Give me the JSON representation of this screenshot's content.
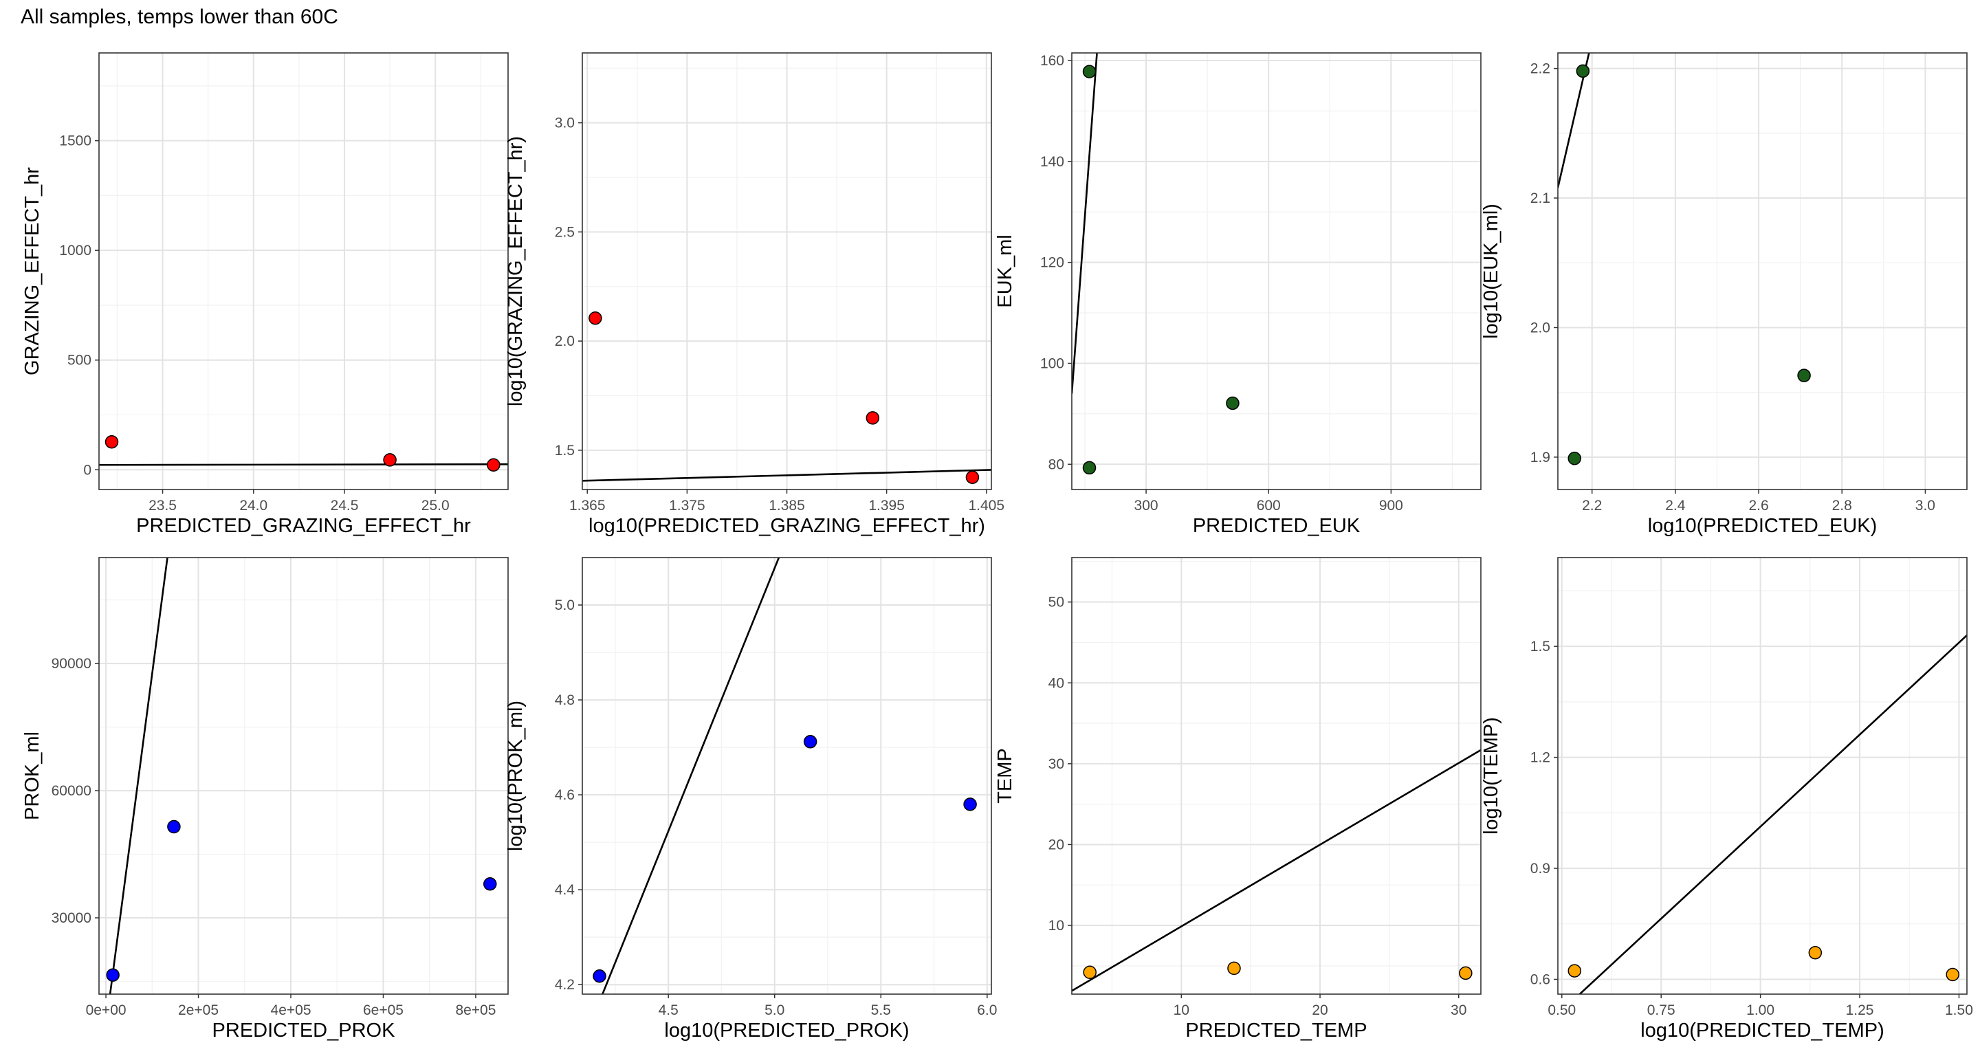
{
  "title": "All samples, temps lower than 60C",
  "chart_data": [
    {
      "type": "scatter",
      "xlabel": "PREDICTED_GRAZING_EFFECT_hr",
      "ylabel": "GRAZING_EFFECT_hr",
      "xlim": [
        23.15,
        25.4
      ],
      "ylim": [
        -90,
        1900
      ],
      "xticks": [
        23.5,
        24.0,
        24.5,
        25.0
      ],
      "xtick_labels": [
        "23.5",
        "24.0",
        "24.5",
        "25.0"
      ],
      "yticks": [
        0,
        500,
        1000,
        1500
      ],
      "ytick_labels": [
        "0",
        "500",
        "1000",
        "1500"
      ],
      "x": [
        23.22,
        24.75,
        25.32
      ],
      "y": [
        127,
        45,
        22
      ],
      "point_color": "#ff0000",
      "line": [
        [
          23.15,
          22
        ],
        [
          25.4,
          25
        ]
      ]
    },
    {
      "type": "scatter",
      "xlabel": "log10(PREDICTED_GRAZING_EFFECT_hr)",
      "ylabel": "log10(GRAZING_EFFECT_hr)",
      "xlim": [
        1.3645,
        1.4055
      ],
      "ylim": [
        1.32,
        3.32
      ],
      "xticks": [
        1.365,
        1.375,
        1.385,
        1.395,
        1.405
      ],
      "xtick_labels": [
        "1.365",
        "1.375",
        "1.385",
        "1.395",
        "1.405"
      ],
      "yticks": [
        1.5,
        2.0,
        2.5,
        3.0
      ],
      "ytick_labels": [
        "1.5",
        "2.0",
        "2.5",
        "3.0"
      ],
      "x": [
        1.3658,
        1.3936,
        1.4036
      ],
      "y": [
        2.105,
        1.648,
        1.376
      ],
      "point_color": "#ff0000",
      "line": [
        [
          1.3645,
          1.36
        ],
        [
          1.4055,
          1.41
        ]
      ]
    },
    {
      "type": "scatter",
      "xlabel": "PREDICTED_EUK",
      "ylabel": "EUK_ml",
      "xlim": [
        118,
        1120
      ],
      "ylim": [
        75,
        161.5
      ],
      "xticks": [
        300,
        600,
        900
      ],
      "xtick_labels": [
        "300",
        "600",
        "900"
      ],
      "yticks": [
        80,
        100,
        120,
        140,
        160
      ],
      "ytick_labels": [
        "80",
        "100",
        "120",
        "140",
        "160"
      ],
      "x": [
        161,
        161,
        512
      ],
      "y": [
        79.3,
        157.8,
        92.1
      ],
      "point_color": "#1a5e1a",
      "line": [
        [
          118,
          94
        ],
        [
          180,
          162
        ]
      ]
    },
    {
      "type": "scatter",
      "xlabel": "log10(PREDICTED_EUK)",
      "ylabel": "log10(EUK_ml)",
      "xlim": [
        2.118,
        3.1
      ],
      "ylim": [
        1.875,
        2.212
      ],
      "xticks": [
        2.2,
        2.4,
        2.6,
        2.8,
        3.0
      ],
      "xtick_labels": [
        "2.2",
        "2.4",
        "2.6",
        "2.8",
        "3.0"
      ],
      "yticks": [
        1.9,
        2.0,
        2.1,
        2.2
      ],
      "ytick_labels": [
        "1.9",
        "2.0",
        "2.1",
        "2.2"
      ],
      "x": [
        2.158,
        2.178,
        2.709
      ],
      "y": [
        1.899,
        2.198,
        1.963
      ],
      "point_color": "#1a5e1a",
      "line": [
        [
          2.118,
          2.108
        ],
        [
          2.2,
          2.222
        ]
      ]
    },
    {
      "type": "scatter",
      "xlabel": "PREDICTED_PROK",
      "ylabel": "PROK_ml",
      "xlim": [
        -15000,
        870000
      ],
      "ylim": [
        12000,
        115000
      ],
      "xticks": [
        0,
        200000,
        400000,
        600000,
        800000
      ],
      "xtick_labels": [
        "0e+00",
        "2e+05",
        "4e+05",
        "6e+05",
        "8e+05"
      ],
      "yticks": [
        30000,
        60000,
        90000
      ],
      "ytick_labels": [
        "30000",
        "60000",
        "90000"
      ],
      "x": [
        15000,
        147000,
        831000
      ],
      "y": [
        16500,
        51500,
        38000
      ],
      "point_color": "#0000ff",
      "line": [
        [
          9000,
          12000
        ],
        [
          133000,
          115000
        ]
      ]
    },
    {
      "type": "scatter",
      "xlabel": "log10(PREDICTED_PROK)",
      "ylabel": "log10(PROK_ml)",
      "xlim": [
        4.095,
        6.02
      ],
      "ylim": [
        4.18,
        5.1
      ],
      "xticks": [
        4.5,
        5.0,
        5.5,
        6.0
      ],
      "xtick_labels": [
        "4.5",
        "5.0",
        "5.5",
        "6.0"
      ],
      "yticks": [
        4.2,
        4.4,
        4.6,
        4.8,
        5.0
      ],
      "ytick_labels": [
        "4.2",
        "4.4",
        "4.6",
        "4.8",
        "5.0"
      ],
      "x": [
        4.176,
        5.168,
        5.92
      ],
      "y": [
        4.218,
        4.712,
        4.58
      ],
      "point_color": "#0000ff",
      "line": [
        [
          4.19,
          4.18
        ],
        [
          5.02,
          5.1
        ]
      ]
    },
    {
      "type": "scatter",
      "xlabel": "PREDICTED_TEMP",
      "ylabel": "TEMP",
      "xlim": [
        2.1,
        31.6
      ],
      "ylim": [
        1.5,
        55.5
      ],
      "xticks": [
        10,
        20,
        30
      ],
      "xtick_labels": [
        "10",
        "20",
        "30"
      ],
      "yticks": [
        10,
        20,
        30,
        40,
        50
      ],
      "ytick_labels": [
        "10",
        "20",
        "30",
        "40",
        "50"
      ],
      "x": [
        3.4,
        13.8,
        30.5
      ],
      "y": [
        4.2,
        4.7,
        4.1
      ],
      "point_color": "#ffa500",
      "line": [
        [
          2.1,
          1.9
        ],
        [
          31.6,
          31.7
        ]
      ]
    },
    {
      "type": "scatter",
      "xlabel": "log10(PREDICTED_TEMP)",
      "ylabel": "log10(TEMP)",
      "xlim": [
        0.49,
        1.52
      ],
      "ylim": [
        0.56,
        1.74
      ],
      "xticks": [
        0.5,
        0.75,
        1.0,
        1.25,
        1.5
      ],
      "xtick_labels": [
        "0.50",
        "0.75",
        "1.00",
        "1.25",
        "1.50"
      ],
      "yticks": [
        0.6,
        0.9,
        1.2,
        1.5
      ],
      "ytick_labels": [
        "0.6",
        "0.9",
        "1.2",
        "1.5"
      ],
      "x": [
        0.532,
        1.138,
        1.484
      ],
      "y": [
        0.623,
        0.672,
        0.613
      ],
      "point_color": "#ffa500",
      "line": [
        [
          0.545,
          0.56
        ],
        [
          1.52,
          1.53
        ]
      ]
    }
  ]
}
